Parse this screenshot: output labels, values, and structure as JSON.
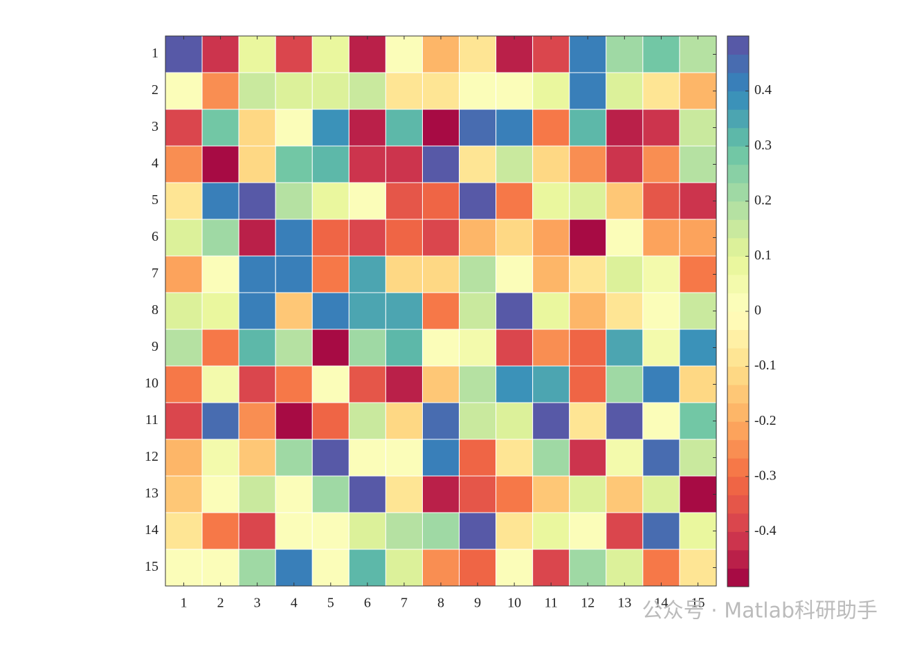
{
  "chart_data": {
    "type": "heatmap",
    "x_categories": [
      "1",
      "2",
      "3",
      "4",
      "5",
      "6",
      "7",
      "8",
      "9",
      "10",
      "11",
      "12",
      "13",
      "14",
      "15"
    ],
    "y_categories": [
      "1",
      "2",
      "3",
      "4",
      "5",
      "6",
      "7",
      "8",
      "9",
      "10",
      "11",
      "12",
      "13",
      "14",
      "15"
    ],
    "values": [
      [
        0.48,
        -0.43,
        0.08,
        -0.38,
        0.08,
        -0.44,
        0.03,
        -0.18,
        -0.07,
        -0.44,
        -0.38,
        0.43,
        0.2,
        0.27,
        0.17
      ],
      [
        0.03,
        -0.25,
        0.15,
        0.13,
        0.1,
        0.15,
        -0.08,
        -0.08,
        0.02,
        0.03,
        0.07,
        0.4,
        0.12,
        -0.08,
        -0.2
      ],
      [
        -0.38,
        0.28,
        -0.12,
        0.01,
        0.37,
        -0.44,
        0.33,
        -0.49,
        0.45,
        0.4,
        -0.28,
        0.33,
        -0.44,
        -0.42,
        0.15
      ],
      [
        -0.25,
        -0.49,
        -0.13,
        0.27,
        0.3,
        -0.42,
        -0.41,
        0.48,
        -0.07,
        0.15,
        -0.12,
        -0.25,
        -0.42,
        -0.25,
        0.18
      ],
      [
        -0.08,
        0.43,
        0.48,
        0.18,
        0.08,
        0.02,
        -0.36,
        -0.33,
        0.48,
        -0.3,
        0.08,
        0.1,
        -0.15,
        -0.36,
        -0.42
      ],
      [
        0.1,
        0.22,
        -0.44,
        0.4,
        -0.33,
        -0.38,
        -0.33,
        -0.38,
        -0.2,
        -0.13,
        -0.23,
        -0.49,
        0.02,
        -0.23,
        -0.23
      ],
      [
        -0.23,
        0.02,
        0.4,
        0.4,
        -0.28,
        0.35,
        -0.12,
        -0.13,
        0.18,
        0.03,
        -0.2,
        -0.08,
        0.13,
        0.05,
        -0.28
      ],
      [
        0.1,
        0.07,
        0.43,
        -0.16,
        0.4,
        0.35,
        0.35,
        -0.3,
        0.15,
        0.48,
        0.08,
        -0.2,
        -0.08,
        0.02,
        0.15
      ],
      [
        0.18,
        -0.28,
        0.3,
        0.18,
        -0.49,
        0.23,
        0.3,
        0.02,
        0.04,
        -0.37,
        -0.25,
        -0.33,
        0.35,
        0.05,
        0.37
      ],
      [
        -0.28,
        0.04,
        -0.38,
        -0.3,
        0.02,
        -0.36,
        -0.44,
        -0.15,
        0.18,
        0.37,
        0.35,
        -0.33,
        0.22,
        0.4,
        -0.13
      ],
      [
        -0.38,
        0.45,
        -0.25,
        -0.49,
        -0.33,
        0.15,
        -0.12,
        0.45,
        0.15,
        0.13,
        0.48,
        -0.07,
        0.48,
        0.02,
        0.27
      ],
      [
        -0.2,
        0.04,
        -0.15,
        0.23,
        0.48,
        0.02,
        0.03,
        0.43,
        -0.33,
        -0.1,
        0.23,
        -0.42,
        0.04,
        0.45,
        0.15
      ],
      [
        -0.15,
        0.02,
        0.15,
        0.02,
        0.2,
        0.48,
        -0.08,
        -0.44,
        -0.36,
        -0.3,
        -0.15,
        0.1,
        -0.15,
        0.12,
        -0.49
      ],
      [
        -0.08,
        -0.28,
        -0.37,
        0.02,
        0.02,
        0.12,
        0.17,
        0.22,
        0.48,
        -0.07,
        0.07,
        0.02,
        -0.38,
        0.45,
        0.08
      ],
      [
        0.03,
        0.03,
        0.23,
        0.4,
        0.03,
        0.3,
        0.12,
        -0.25,
        -0.33,
        0.02,
        -0.38,
        0.2,
        0.1,
        -0.28,
        -0.1
      ]
    ],
    "clim": [
      -0.5,
      0.5
    ],
    "levels": 30,
    "colormap": [
      "#9e0142",
      "#d53e4f",
      "#f46d43",
      "#fdae61",
      "#fee08b",
      "#ffffbf",
      "#e6f598",
      "#abdda4",
      "#66c2a5",
      "#3288bd",
      "#5e4fa2"
    ],
    "cticks": [
      0.4,
      0.3,
      0.2,
      0.1,
      0,
      -0.1,
      -0.2,
      -0.3,
      -0.4
    ],
    "watermark": "公众号 · Matlab科研助手"
  }
}
